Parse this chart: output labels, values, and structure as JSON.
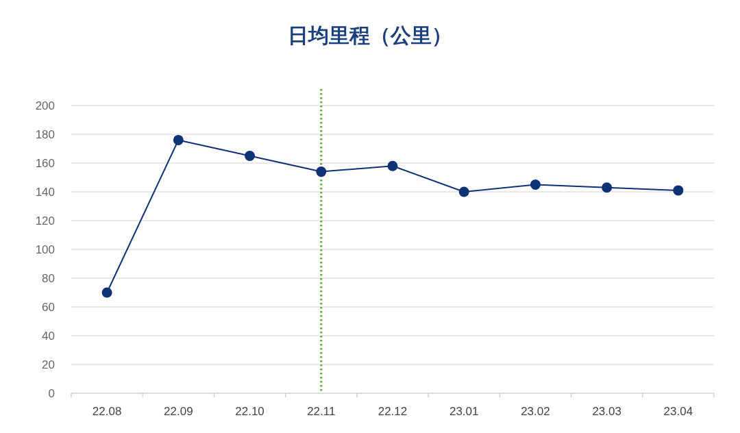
{
  "chart_data": {
    "type": "line",
    "title": "日均里程（公里）",
    "categories": [
      "22.08",
      "22.09",
      "22.10",
      "22.11",
      "22.12",
      "23.01",
      "23.02",
      "23.03",
      "23.04"
    ],
    "values": [
      70,
      176,
      165,
      154,
      158,
      140,
      145,
      143,
      141
    ],
    "color": "#0d3275",
    "ylim": [
      0,
      200
    ],
    "yticks": [
      0,
      20,
      40,
      60,
      80,
      100,
      120,
      140,
      160,
      180,
      200
    ],
    "grid": "y",
    "marker": "circle",
    "ref_lines": [
      {
        "axis": "x",
        "value": "22.11",
        "color": "#5fa83c",
        "line_style": "dotted"
      }
    ]
  }
}
